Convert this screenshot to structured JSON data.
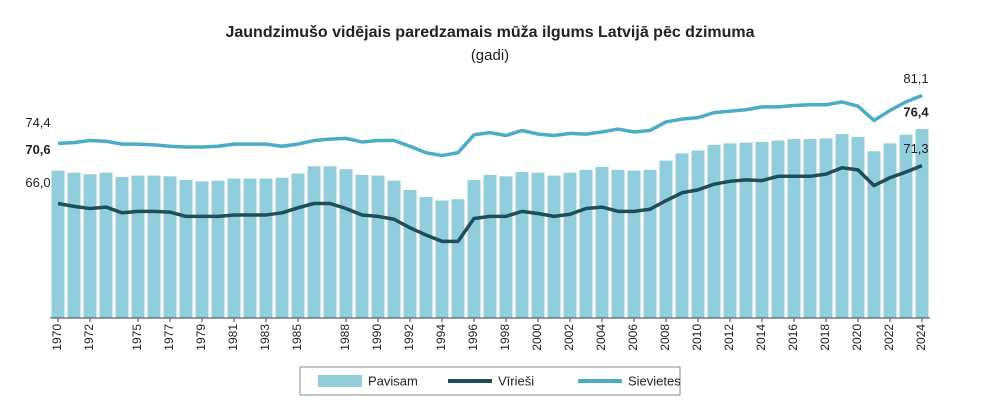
{
  "chart_data": {
    "type": "bar",
    "title": "Jaundzimušo vidējais paredzamais mūža ilgums Latvijā pēc dzimuma",
    "subtitle": "(gadi)",
    "categories": [
      "1970",
      null,
      "1972",
      null,
      null,
      "1975",
      null,
      "1977",
      null,
      "1979",
      null,
      "1981",
      null,
      "1983",
      null,
      "1985",
      null,
      null,
      "1988",
      null,
      "1990",
      null,
      "1992",
      null,
      "1994",
      null,
      "1996",
      null,
      "1998",
      null,
      "2000",
      null,
      "2002",
      null,
      "2004",
      null,
      "2006",
      null,
      "2008",
      null,
      "2010",
      null,
      "2012",
      null,
      "2014",
      null,
      "2016",
      null,
      "2018",
      null,
      "2020",
      null,
      "2022",
      null,
      "2024"
    ],
    "ylim": [
      50,
      82
    ],
    "series": [
      {
        "name": "Pavisam",
        "type": "bar",
        "color": "#92cddc",
        "values": [
          70.6,
          70.3,
          70.1,
          70.3,
          69.7,
          69.9,
          69.9,
          69.8,
          69.3,
          69.1,
          69.2,
          69.5,
          69.5,
          69.5,
          69.6,
          70.2,
          71.2,
          71.2,
          70.8,
          70.0,
          69.9,
          69.2,
          67.9,
          66.9,
          66.4,
          66.6,
          69.3,
          70.0,
          69.8,
          70.4,
          70.3,
          69.9,
          70.3,
          70.7,
          71.1,
          70.7,
          70.6,
          70.7,
          72.0,
          73.0,
          73.4,
          74.2,
          74.4,
          74.5,
          74.6,
          74.8,
          75.0,
          75.0,
          75.1,
          75.7,
          75.3,
          73.3,
          74.4,
          75.6,
          76.4
        ],
        "value_labels": [
          "70,6",
          null,
          null,
          null,
          null,
          null,
          null,
          null,
          null,
          null,
          null,
          null,
          null,
          null,
          null,
          null,
          null,
          null,
          null,
          null,
          null,
          null,
          null,
          null,
          null,
          null,
          null,
          null,
          null,
          null,
          null,
          null,
          null,
          null,
          null,
          null,
          null,
          null,
          null,
          null,
          null,
          null,
          null,
          null,
          null,
          null,
          null,
          null,
          null,
          null,
          null,
          null,
          null,
          null,
          "76,4"
        ]
      },
      {
        "name": "Vīrieši",
        "type": "line",
        "color": "#1f4e5a",
        "values": [
          66.0,
          65.6,
          65.3,
          65.5,
          64.7,
          64.9,
          64.9,
          64.8,
          64.2,
          64.2,
          64.2,
          64.4,
          64.4,
          64.4,
          64.7,
          65.4,
          66.0,
          66.0,
          65.3,
          64.4,
          64.2,
          63.8,
          62.6,
          61.6,
          60.7,
          60.7,
          63.9,
          64.2,
          64.2,
          64.9,
          64.6,
          64.2,
          64.5,
          65.3,
          65.5,
          64.9,
          64.9,
          65.2,
          66.4,
          67.5,
          67.9,
          68.7,
          69.1,
          69.3,
          69.2,
          69.8,
          69.8,
          69.8,
          70.1,
          71.0,
          70.7,
          68.5,
          69.6,
          70.4,
          71.3
        ],
        "value_labels": [
          "66,0",
          null,
          null,
          null,
          null,
          null,
          null,
          null,
          null,
          null,
          null,
          null,
          null,
          null,
          null,
          null,
          null,
          null,
          null,
          null,
          null,
          null,
          null,
          null,
          null,
          null,
          null,
          null,
          null,
          null,
          null,
          null,
          null,
          null,
          null,
          null,
          null,
          null,
          null,
          null,
          null,
          null,
          null,
          null,
          null,
          null,
          null,
          null,
          null,
          null,
          null,
          null,
          null,
          null,
          "71,3"
        ]
      },
      {
        "name": "Sievietes",
        "type": "line",
        "color": "#4bacc6",
        "values": [
          74.4,
          74.5,
          74.8,
          74.7,
          74.3,
          74.3,
          74.2,
          74.0,
          73.9,
          73.9,
          74.0,
          74.3,
          74.3,
          74.3,
          74.0,
          74.3,
          74.8,
          75.0,
          75.1,
          74.6,
          74.8,
          74.8,
          74.0,
          73.1,
          72.7,
          73.1,
          75.6,
          75.9,
          75.5,
          76.2,
          75.7,
          75.5,
          75.8,
          75.7,
          76.0,
          76.4,
          76.0,
          76.2,
          77.4,
          77.8,
          78.0,
          78.7,
          78.9,
          79.1,
          79.5,
          79.5,
          79.7,
          79.8,
          79.8,
          80.2,
          79.6,
          77.6,
          79.0,
          80.2,
          81.1
        ],
        "value_labels": [
          "74,4",
          null,
          null,
          null,
          null,
          null,
          null,
          null,
          null,
          null,
          null,
          null,
          null,
          null,
          null,
          null,
          null,
          null,
          null,
          null,
          null,
          null,
          null,
          null,
          null,
          null,
          null,
          null,
          null,
          null,
          null,
          null,
          null,
          null,
          null,
          null,
          null,
          null,
          null,
          null,
          null,
          null,
          null,
          null,
          null,
          null,
          null,
          null,
          null,
          null,
          null,
          null,
          null,
          null,
          "81,1"
        ]
      }
    ]
  }
}
